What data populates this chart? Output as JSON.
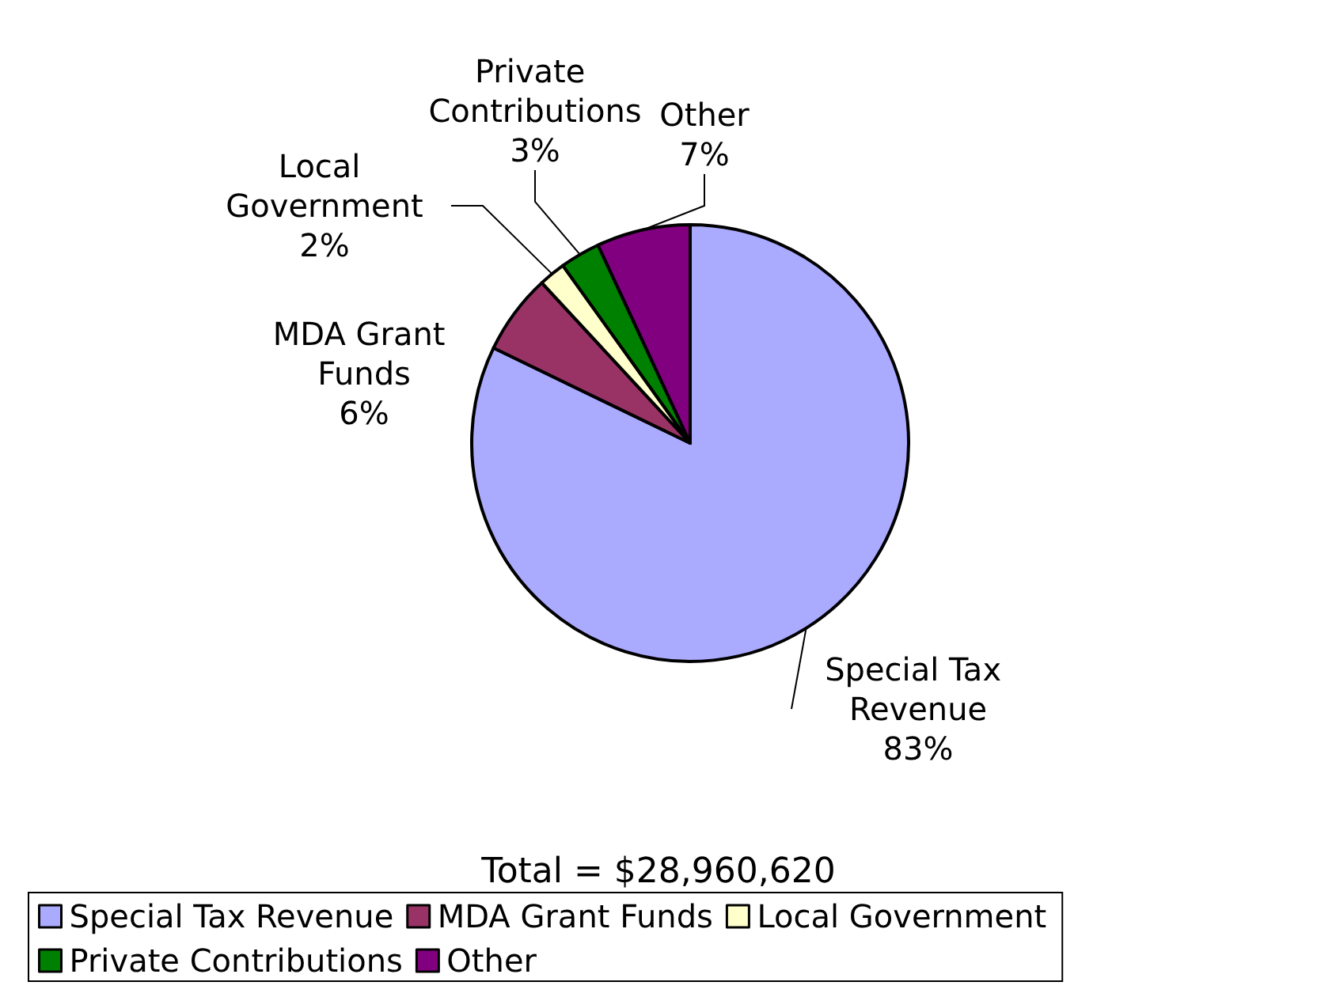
{
  "chart_data": {
    "type": "pie",
    "title": "Total = $28,960,620",
    "categories": [
      "Special Tax Revenue",
      "MDA Grant Funds",
      "Local Government",
      "Private Contributions",
      "Other"
    ],
    "values": [
      83,
      6,
      2,
      3,
      7
    ],
    "colors": [
      "#aaaaff",
      "#993366",
      "#ffffcc",
      "#008000",
      "#800080"
    ],
    "value_labels": [
      "83%",
      "6%",
      "2%",
      "3%",
      "7%"
    ],
    "legend": "bottom"
  }
}
